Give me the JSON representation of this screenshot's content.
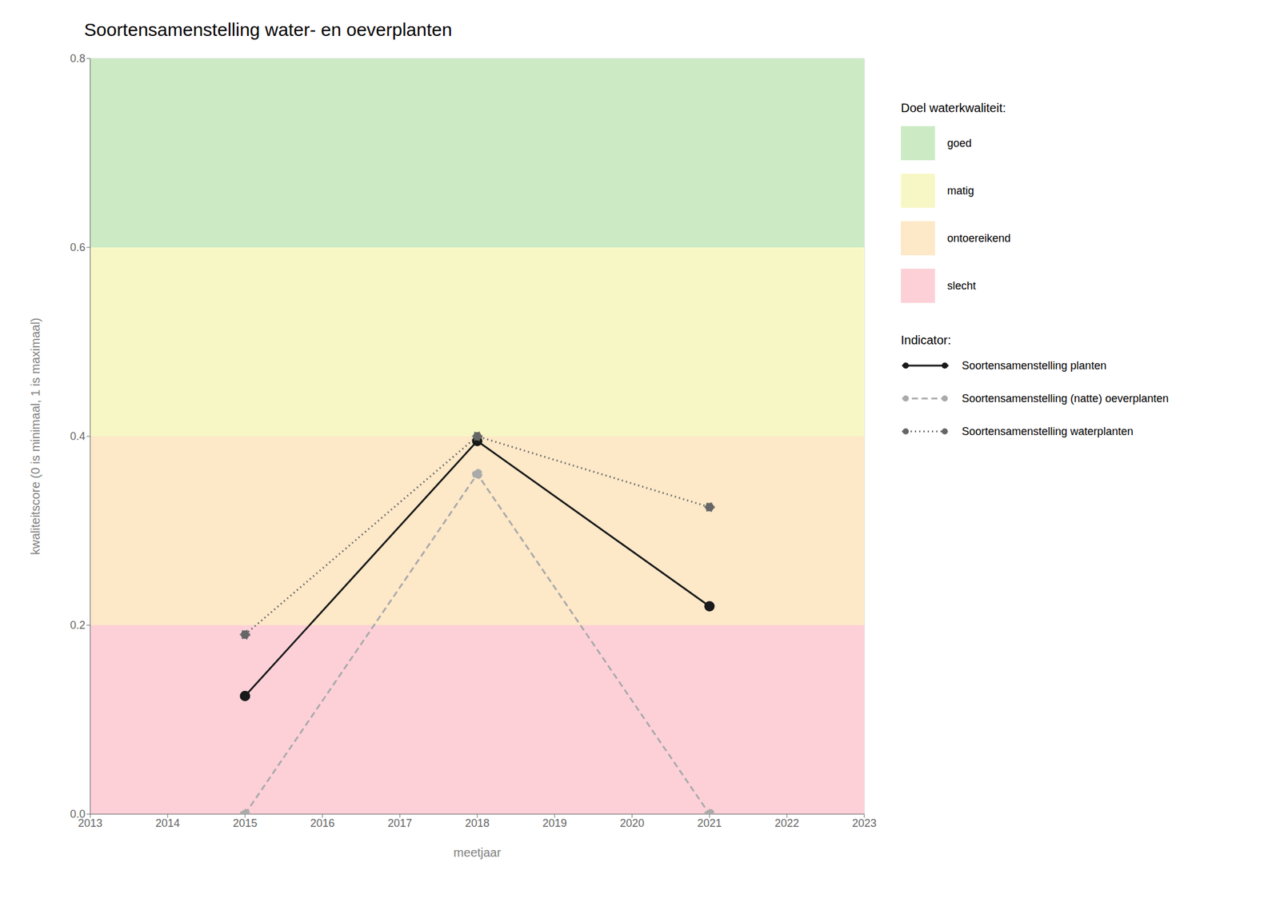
{
  "chart_data": {
    "type": "line",
    "title": "Soortensamenstelling water- en oeverplanten",
    "x_label": "meetjaar",
    "y_label": "kwaliteitscore (0 is minimaal, 1 is maximaal)",
    "x": [
      2015,
      2018,
      2021
    ],
    "xlim": [
      2013,
      2023
    ],
    "xticks": [
      2013,
      2014,
      2015,
      2016,
      2017,
      2018,
      2019,
      2020,
      2021,
      2022,
      2023
    ],
    "ylim": [
      0.0,
      0.8
    ],
    "yticks": [
      {
        "value": 0.0,
        "label": "0.0"
      },
      0.2,
      0.4,
      0.6,
      0.8
    ],
    "grid": true,
    "legend": "right",
    "band_legend_title": "Doel waterkwaliteit:",
    "bands": [
      {
        "name": "goed",
        "ymin": 0.6,
        "ymax": 0.8,
        "color": "#ccebc5"
      },
      {
        "name": "matig",
        "ymin": 0.4,
        "ymax": 0.6,
        "color": "#f7f7c6"
      },
      {
        "name": "ontoereikend",
        "ymin": 0.2,
        "ymax": 0.4,
        "color": "#fde8c8"
      },
      {
        "name": "slecht",
        "ymin": 0.0,
        "ymax": 0.2,
        "color": "#fdd0d8"
      }
    ],
    "series_legend_title": "Indicator:",
    "series": [
      {
        "name": "Soortensamenstelling planten",
        "color": "#1a1a1a",
        "line_style": "solid",
        "marker": "circle",
        "values": [
          0.125,
          0.395,
          0.22
        ]
      },
      {
        "name": "Soortensamenstelling (natte) oeverplanten",
        "color": "#aaaaaa",
        "line_style": "dashed",
        "marker": "circle",
        "values": [
          0.0,
          0.36,
          0.0
        ]
      },
      {
        "name": "Soortensamenstelling waterplanten",
        "color": "#666666",
        "line_style": "dotted",
        "marker": "circle",
        "values": [
          0.19,
          0.4,
          0.325
        ]
      }
    ]
  }
}
